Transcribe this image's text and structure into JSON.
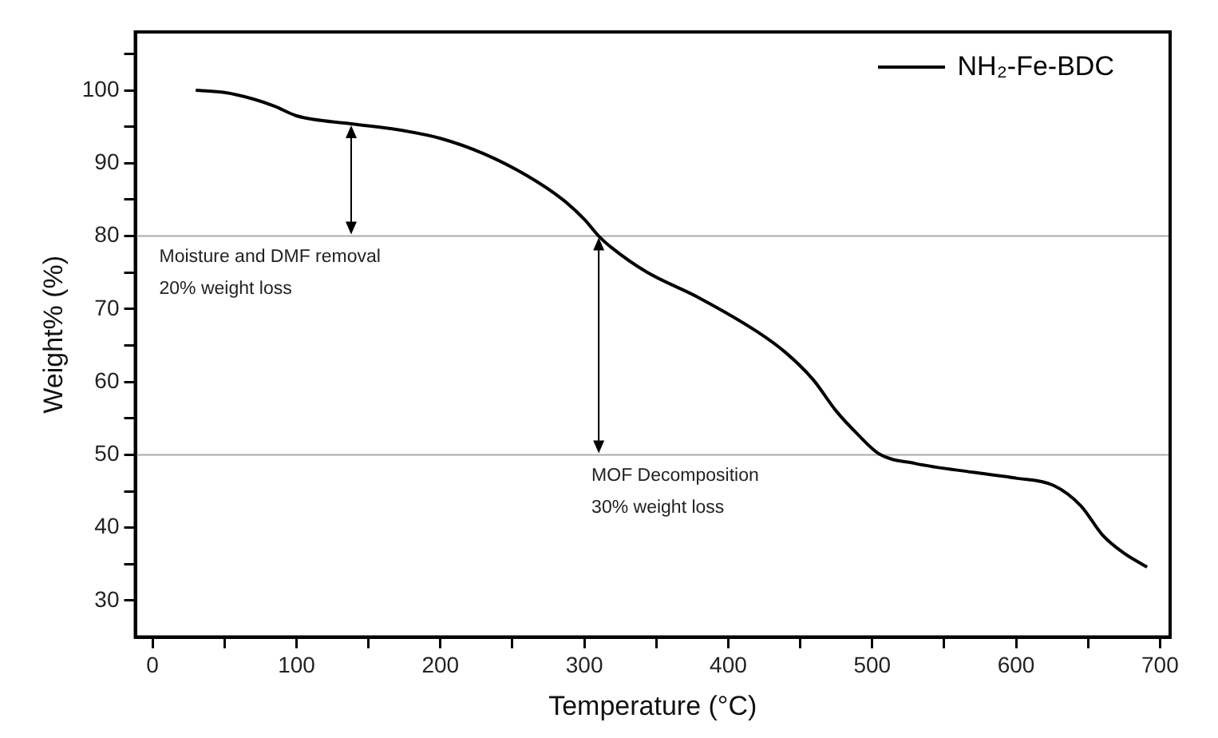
{
  "chart_data": {
    "type": "line",
    "xlabel": "Temperature (°C)",
    "ylabel": "Weight% (%)",
    "xlim": [
      -12,
      707
    ],
    "ylim": [
      25,
      108
    ],
    "xticks": [
      0,
      {
        "value": 50,
        "label": null
      },
      100,
      {
        "value": 150,
        "label": null
      },
      200,
      {
        "value": 250,
        "label": null
      },
      300,
      {
        "value": 350,
        "label": null
      },
      400,
      {
        "value": 450,
        "label": null
      },
      500,
      {
        "value": 550,
        "label": null
      },
      600,
      {
        "value": 650,
        "label": null
      },
      700
    ],
    "yticks": [
      30,
      {
        "value": 35,
        "label": null
      },
      40,
      {
        "value": 45,
        "label": null
      },
      50,
      {
        "value": 55,
        "label": null
      },
      60,
      {
        "value": 65,
        "label": null
      },
      70,
      {
        "value": 75,
        "label": null
      },
      80,
      {
        "value": 85,
        "label": null
      },
      90,
      {
        "value": 95,
        "label": null
      },
      100,
      {
        "value": 105,
        "label": null
      }
    ],
    "series": [
      {
        "name": "NH₂-Fe-BDC",
        "color": "#000000",
        "x": [
          30,
          50,
          70,
          85,
          100,
          138,
          170,
          200,
          230,
          260,
          285,
          300,
          310,
          319,
          343,
          380,
          420,
          440,
          459,
          475,
          490,
          505,
          530,
          570,
          600,
          626,
          645,
          660,
          675,
          691
        ],
        "values": [
          100,
          99.7,
          98.8,
          97.8,
          96.5,
          95.4,
          94.6,
          93.4,
          91.3,
          88.3,
          85,
          82.3,
          80,
          78.4,
          75.1,
          71.5,
          66.9,
          64,
          60.3,
          56,
          52.8,
          50.1,
          48.8,
          47.6,
          46.8,
          45.8,
          43,
          39,
          36.5,
          34.6
        ]
      }
    ],
    "ref_lines": [
      {
        "axis": "y",
        "value": 80,
        "color": "#aaaaaa"
      },
      {
        "axis": "y",
        "value": 50,
        "color": "#aaaaaa"
      }
    ],
    "annotations": [
      "Moisture and DMF removal",
      "20% weight loss",
      "MOF Decomposition",
      "30% weight loss"
    ],
    "legend": "top right",
    "grid": false,
    "marker": "none",
    "line_style": "solid"
  }
}
